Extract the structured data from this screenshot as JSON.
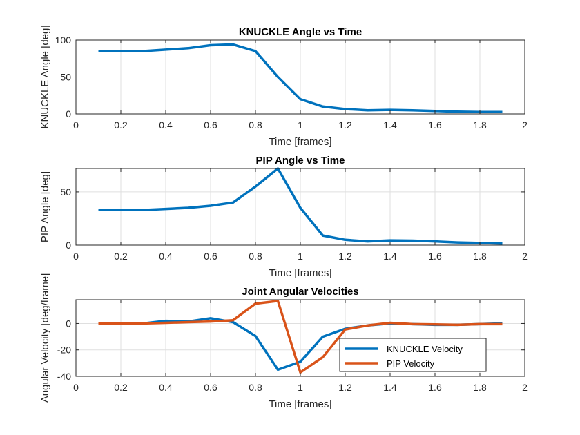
{
  "chart_data": [
    {
      "type": "line",
      "title": "KNUCKLE Angle vs Time",
      "xlabel": "Time [frames]",
      "ylabel": "KNUCKLE Angle [deg]",
      "xlim": [
        0,
        2
      ],
      "ylim": [
        0,
        100
      ],
      "xticks": [
        0,
        0.2,
        0.4,
        0.6,
        0.8,
        1,
        1.2,
        1.4,
        1.6,
        1.8,
        2
      ],
      "xtick_labels": [
        "0",
        "0.2",
        "0.4",
        "0.6",
        "0.8",
        "1",
        "1.2",
        "1.4",
        "1.6",
        "1.8",
        "2"
      ],
      "yticks": [
        0,
        50,
        100
      ],
      "ytick_labels": [
        "0",
        "50",
        "100"
      ],
      "grid": true,
      "series": [
        {
          "color": "#0072BD",
          "x": [
            0.1,
            0.2,
            0.3,
            0.4,
            0.5,
            0.6,
            0.7,
            0.8,
            0.9,
            1.0,
            1.1,
            1.2,
            1.3,
            1.4,
            1.5,
            1.6,
            1.7,
            1.8,
            1.9
          ],
          "y": [
            85,
            85,
            85,
            87,
            89,
            93,
            94,
            85,
            50,
            20,
            10,
            6.5,
            5,
            5.5,
            5,
            4,
            3,
            2.5,
            2.5
          ]
        }
      ]
    },
    {
      "type": "line",
      "title": "PIP Angle vs Time",
      "xlabel": "Time [frames]",
      "ylabel": "PIP Angle [deg]",
      "xlim": [
        0,
        2
      ],
      "ylim": [
        0,
        72
      ],
      "xticks": [
        0,
        0.2,
        0.4,
        0.6,
        0.8,
        1,
        1.2,
        1.4,
        1.6,
        1.8,
        2
      ],
      "xtick_labels": [
        "0",
        "0.2",
        "0.4",
        "0.6",
        "0.8",
        "1",
        "1.2",
        "1.4",
        "1.6",
        "1.8",
        "2"
      ],
      "yticks": [
        0,
        50
      ],
      "ytick_labels": [
        "0",
        "50"
      ],
      "grid": true,
      "series": [
        {
          "color": "#0072BD",
          "x": [
            0.1,
            0.2,
            0.3,
            0.4,
            0.5,
            0.6,
            0.7,
            0.8,
            0.9,
            1.0,
            1.1,
            1.2,
            1.3,
            1.4,
            1.5,
            1.6,
            1.7,
            1.8,
            1.9
          ],
          "y": [
            33,
            33,
            33,
            34,
            35,
            37,
            40,
            55,
            72,
            35,
            9,
            5,
            3.5,
            4.5,
            4.2,
            3.5,
            2.5,
            2,
            1.5
          ]
        }
      ]
    },
    {
      "type": "line",
      "title": "Joint Angular Velocities",
      "xlabel": "Time [frames]",
      "ylabel": "Angular Velocity [deg/frame]",
      "xlim": [
        0,
        2
      ],
      "ylim": [
        -40,
        18
      ],
      "xticks": [
        0,
        0.2,
        0.4,
        0.6,
        0.8,
        1,
        1.2,
        1.4,
        1.6,
        1.8,
        2
      ],
      "xtick_labels": [
        "0",
        "0.2",
        "0.4",
        "0.6",
        "0.8",
        "1",
        "1.2",
        "1.4",
        "1.6",
        "1.8",
        "2"
      ],
      "yticks": [
        -40,
        -20,
        0
      ],
      "ytick_labels": [
        "-40",
        "-20",
        "0"
      ],
      "grid": true,
      "legend": "bottom-right",
      "series": [
        {
          "name": "KNUCKLE Velocity",
          "color": "#0072BD",
          "x": [
            0.1,
            0.2,
            0.3,
            0.4,
            0.5,
            0.6,
            0.7,
            0.8,
            0.9,
            1.0,
            1.1,
            1.2,
            1.3,
            1.4,
            1.5,
            1.6,
            1.7,
            1.8,
            1.9
          ],
          "y": [
            0,
            0,
            0,
            2,
            1.5,
            4,
            1,
            -9.5,
            -35,
            -29,
            -10,
            -4,
            -1.5,
            0,
            -0.5,
            -1,
            -1,
            -0.5,
            0
          ]
        },
        {
          "name": "PIP Velocity",
          "color": "#D95319",
          "x": [
            0.1,
            0.2,
            0.3,
            0.4,
            0.5,
            0.6,
            0.7,
            0.8,
            0.9,
            1.0,
            1.1,
            1.2,
            1.3,
            1.4,
            1.5,
            1.6,
            1.7,
            1.8,
            1.9
          ],
          "y": [
            0,
            0,
            0,
            0.5,
            1,
            1.5,
            2.5,
            15,
            17,
            -37,
            -25.5,
            -4.5,
            -1.5,
            0.5,
            -0.5,
            -0.7,
            -1,
            -0.5,
            -0.5
          ]
        }
      ]
    }
  ]
}
